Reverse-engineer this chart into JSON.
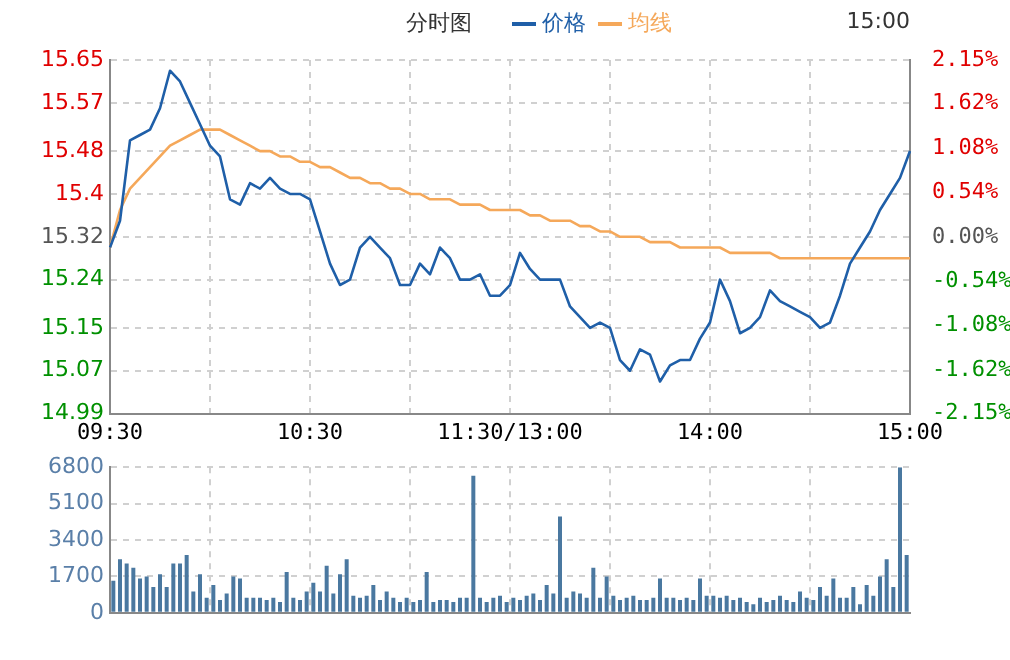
{
  "chart_data": [
    {
      "type": "line",
      "title": "分时图",
      "legend": "top",
      "grid": true,
      "marker": "none",
      "line_style": "solid",
      "annotations": [
        "15:00"
      ],
      "categories": [
        "09:30",
        null,
        null,
        null,
        null,
        null,
        null,
        null,
        null,
        null,
        null,
        null,
        null,
        null,
        null,
        null,
        null,
        null,
        null,
        null,
        "10:30",
        null,
        null,
        null,
        null,
        null,
        null,
        null,
        null,
        null,
        null,
        null,
        null,
        null,
        null,
        null,
        null,
        null,
        null,
        null,
        "11:30/13:00",
        null,
        null,
        null,
        null,
        null,
        null,
        null,
        null,
        null,
        null,
        null,
        null,
        null,
        null,
        null,
        null,
        null,
        null,
        null,
        "14:00",
        null,
        null,
        null,
        null,
        null,
        null,
        null,
        null,
        null,
        null,
        null,
        null,
        null,
        null,
        null,
        null,
        null,
        null,
        null,
        "15:00"
      ],
      "ylim": [
        14.99,
        15.65
      ],
      "yticks": [
        14.99,
        15.07,
        15.15,
        15.24,
        15.32,
        15.4,
        15.48,
        15.57,
        15.65
      ],
      "y2lim": [
        -2.15,
        2.15
      ],
      "y2ticks": [
        {
          "value": -2.15,
          "label": "-2.15%"
        },
        {
          "value": -1.62,
          "label": "-1.62%"
        },
        {
          "value": -1.08,
          "label": "-1.08%"
        },
        {
          "value": -0.54,
          "label": "-0.54%"
        },
        {
          "value": 0,
          "label": "0.00%"
        },
        {
          "value": 0.54,
          "label": "0.54%"
        },
        {
          "value": 1.08,
          "label": "1.08%"
        },
        {
          "value": 1.62,
          "label": "1.62%"
        },
        {
          "value": 2.15,
          "label": "2.15%"
        }
      ],
      "series": [
        {
          "name": "价格",
          "color": "#1f5fa8",
          "values": [
            15.3,
            15.35,
            15.5,
            15.51,
            15.52,
            15.56,
            15.63,
            15.61,
            15.57,
            15.53,
            15.49,
            15.47,
            15.39,
            15.38,
            15.42,
            15.41,
            15.43,
            15.41,
            15.4,
            15.4,
            15.39,
            15.33,
            15.27,
            15.23,
            15.24,
            15.3,
            15.32,
            15.3,
            15.28,
            15.23,
            15.23,
            15.27,
            15.25,
            15.3,
            15.28,
            15.24,
            15.24,
            15.25,
            15.21,
            15.21,
            15.23,
            15.29,
            15.26,
            15.24,
            15.24,
            15.24,
            15.19,
            15.17,
            15.15,
            15.16,
            15.15,
            15.09,
            15.07,
            15.11,
            15.1,
            15.05,
            15.08,
            15.09,
            15.09,
            15.13,
            15.16,
            15.24,
            15.2,
            15.14,
            15.15,
            15.17,
            15.22,
            15.2,
            15.19,
            15.18,
            15.17,
            15.15,
            15.16,
            15.21,
            15.27,
            15.3,
            15.33,
            15.37,
            15.4,
            15.43,
            15.48
          ]
        },
        {
          "name": "均线",
          "color": "#f5a85a",
          "values": [
            15.3,
            15.37,
            15.41,
            15.43,
            15.45,
            15.47,
            15.49,
            15.5,
            15.51,
            15.52,
            15.52,
            15.52,
            15.51,
            15.5,
            15.49,
            15.48,
            15.48,
            15.47,
            15.47,
            15.46,
            15.46,
            15.45,
            15.45,
            15.44,
            15.43,
            15.43,
            15.42,
            15.42,
            15.41,
            15.41,
            15.4,
            15.4,
            15.39,
            15.39,
            15.39,
            15.38,
            15.38,
            15.38,
            15.37,
            15.37,
            15.37,
            15.37,
            15.36,
            15.36,
            15.35,
            15.35,
            15.35,
            15.34,
            15.34,
            15.33,
            15.33,
            15.32,
            15.32,
            15.32,
            15.31,
            15.31,
            15.31,
            15.3,
            15.3,
            15.3,
            15.3,
            15.3,
            15.29,
            15.29,
            15.29,
            15.29,
            15.29,
            15.28,
            15.28,
            15.28,
            15.28,
            15.28,
            15.28,
            15.28,
            15.28,
            15.28,
            15.28,
            15.28,
            15.28,
            15.28,
            15.28
          ]
        }
      ]
    },
    {
      "type": "bar",
      "grid": true,
      "tick_labels": "y",
      "ylim": [
        0,
        6800
      ],
      "yticks": [
        0,
        1700,
        3400,
        5100,
        6800
      ],
      "categories": [
        null,
        null,
        null,
        null,
        null,
        null,
        null,
        null,
        null,
        null,
        null,
        null,
        null,
        null,
        null,
        null,
        null,
        null,
        null,
        null,
        null,
        null,
        null,
        null,
        null,
        null,
        null,
        null,
        null,
        null,
        null,
        null,
        null,
        null,
        null,
        null,
        null,
        null,
        null,
        null,
        null,
        null,
        null,
        null,
        null,
        null,
        null,
        null,
        null,
        null,
        null,
        null,
        null,
        null,
        null,
        null,
        null,
        null,
        null,
        null,
        null,
        null,
        null,
        null,
        null,
        null,
        null,
        null,
        null,
        null,
        null,
        null,
        null,
        null,
        null,
        null,
        null,
        null,
        null,
        null,
        null,
        null,
        null,
        null,
        null,
        null,
        null,
        null,
        null,
        null,
        null,
        null,
        null,
        null,
        null,
        null,
        null,
        null,
        null,
        null,
        null,
        null,
        null,
        null,
        null,
        null,
        null,
        null,
        null,
        null,
        null,
        null,
        null,
        null,
        null,
        null,
        null,
        null,
        null,
        null
      ],
      "series": [
        {
          "color": "#4a78a0",
          "values": [
            1500,
            2500,
            2300,
            2100,
            1600,
            1700,
            1200,
            1800,
            1200,
            2300,
            2300,
            2700,
            1000,
            1800,
            700,
            1300,
            600,
            900,
            1700,
            1600,
            700,
            700,
            700,
            600,
            700,
            500,
            1900,
            700,
            600,
            1000,
            1400,
            1000,
            2200,
            900,
            1800,
            2500,
            800,
            700,
            800,
            1300,
            600,
            1000,
            700,
            500,
            700,
            500,
            600,
            1900,
            500,
            600,
            600,
            500,
            700,
            700,
            6400,
            700,
            500,
            700,
            800,
            500,
            700,
            600,
            800,
            900,
            600,
            1300,
            900,
            4500,
            700,
            1000,
            900,
            700,
            2100,
            700,
            1700,
            800,
            600,
            700,
            800,
            600,
            600,
            700,
            1600,
            700,
            700,
            600,
            700,
            600,
            1600,
            800,
            800,
            700,
            800,
            600,
            700,
            500,
            400,
            700,
            500,
            600,
            800,
            600,
            500,
            1000,
            700,
            600,
            1200,
            800,
            1600,
            700,
            700,
            1200,
            400,
            1300,
            800,
            1700,
            2500,
            1200,
            6800,
            2700
          ]
        }
      ]
    }
  ]
}
